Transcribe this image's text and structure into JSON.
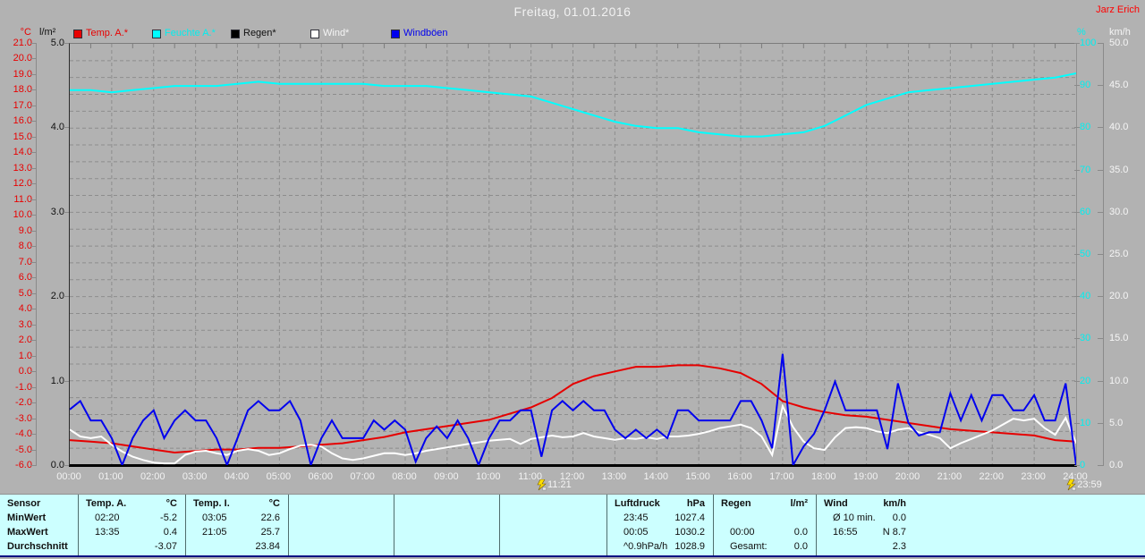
{
  "title": "Freitag, 01.01.2016",
  "watermark": "Jarz Erich",
  "legend": [
    {
      "label": "Temp. A.*",
      "color": "#e80000",
      "text_color": "#e80000"
    },
    {
      "label": "Feuchte A.*",
      "color": "#00ffff",
      "text_color": "#00efef"
    },
    {
      "label": "Regen*",
      "color": "#000000",
      "text_color": "#101010"
    },
    {
      "label": "Wind*",
      "color": "#ffffff",
      "text_color": "#f5f5f5"
    },
    {
      "label": "Windböen",
      "color": "#0000ee",
      "text_color": "#0000ee"
    }
  ],
  "axes": {
    "temp": {
      "unit": "°C",
      "min": -6,
      "max": 21,
      "tick_labels": [
        "21.0",
        "20.0",
        "19.0",
        "18.0",
        "17.0",
        "16.0",
        "15.0",
        "14.0",
        "13.0",
        "12.0",
        "11.0",
        "10.0",
        "9.0",
        "8.0",
        "7.0",
        "6.0",
        "5.0",
        "4.0",
        "3.0",
        "2.0",
        "1.0",
        "0.0",
        "-1.0",
        "-2.0",
        "-3.0",
        "-4.0",
        "-5.0",
        "-6.0"
      ]
    },
    "rain": {
      "unit": "l/m²",
      "min": 0,
      "max": 5,
      "tick_labels": [
        "5.0",
        "4.0",
        "3.0",
        "2.0",
        "1.0",
        "0.0"
      ]
    },
    "humidity": {
      "unit": "%",
      "min": 0,
      "max": 100,
      "tick_labels": [
        "100",
        "90",
        "80",
        "70",
        "60",
        "50",
        "40",
        "30",
        "20",
        "10",
        "0"
      ]
    },
    "wind": {
      "unit": "km/h",
      "min": 0,
      "max": 50,
      "tick_labels": [
        "50.0",
        "45.0",
        "40.0",
        "35.0",
        "30.0",
        "25.0",
        "20.0",
        "15.0",
        "10.0",
        "5.0",
        "0.0"
      ]
    }
  },
  "x_axis": {
    "labels": [
      "00:00",
      "01:00",
      "02:00",
      "03:00",
      "04:00",
      "05:00",
      "06:00",
      "07:00",
      "08:00",
      "09:00",
      "10:00",
      "11:00",
      "12:00",
      "13:00",
      "14:00",
      "15:00",
      "16:00",
      "17:00",
      "18:00",
      "19:00",
      "20:00",
      "21:00",
      "22:00",
      "23:00",
      "24:00"
    ]
  },
  "markers": [
    {
      "label": "11:21",
      "hour": 11.35
    },
    {
      "label": "23:59",
      "hour": 23.983
    }
  ],
  "chart_data": {
    "type": "line",
    "title": "Freitag, 01.01.2016",
    "x_unit": "hours",
    "x_range": [
      0,
      24
    ],
    "grid": {
      "vertical_every_hours": 1,
      "horizontal_every_rain_units": 0.2
    },
    "series": [
      {
        "name": "Regen",
        "unit": "l/m²",
        "axis": "rain",
        "color": "#000000",
        "x_start": 0,
        "x_step": 24,
        "values": [
          0,
          0
        ]
      },
      {
        "name": "Feuchte A.",
        "unit": "%",
        "axis": "humidity",
        "color": "#00ffff",
        "x_start": 0,
        "x_step": 0.5,
        "values": [
          89,
          89,
          88.5,
          89,
          89.5,
          90,
          90,
          90,
          90.5,
          91,
          90.5,
          90.5,
          90.5,
          90.5,
          90.5,
          90,
          90,
          90,
          89.5,
          89,
          88.5,
          88,
          87.5,
          86,
          84.5,
          83,
          81.5,
          80.5,
          80,
          80,
          79,
          78.5,
          78,
          78,
          78.5,
          79,
          80.5,
          83,
          85.5,
          87,
          88.5,
          89,
          89.5,
          90,
          90.5,
          91,
          91.5,
          92,
          93
        ]
      },
      {
        "name": "Temp. A.",
        "unit": "°C",
        "axis": "temp",
        "color": "#e60000",
        "x_start": 0,
        "x_step": 0.5,
        "values": [
          -4.4,
          -4.5,
          -4.6,
          -4.8,
          -5.0,
          -5.2,
          -5.1,
          -5.0,
          -5.0,
          -4.9,
          -4.9,
          -4.8,
          -4.7,
          -4.6,
          -4.4,
          -4.2,
          -3.9,
          -3.7,
          -3.5,
          -3.3,
          -3.1,
          -2.7,
          -2.3,
          -1.7,
          -0.8,
          -0.3,
          0.0,
          0.3,
          0.3,
          0.4,
          0.4,
          0.2,
          -0.1,
          -0.8,
          -1.9,
          -2.3,
          -2.6,
          -2.8,
          -2.9,
          -3.1,
          -3.3,
          -3.5,
          -3.7,
          -3.8,
          -3.9,
          -4.0,
          -4.1,
          -4.4,
          -4.5
        ]
      },
      {
        "name": "Wind",
        "unit": "km/h",
        "axis": "wind",
        "color": "#ffffff",
        "x_start": 0,
        "x_step": 0.25,
        "values": [
          4.2,
          3.4,
          3.2,
          3.4,
          2.4,
          1.6,
          1.0,
          0.6,
          0.3,
          0.2,
          0.2,
          1.2,
          1.6,
          1.7,
          1.4,
          1.2,
          1.7,
          1.9,
          1.7,
          1.2,
          1.4,
          1.9,
          2.3,
          2.4,
          2.2,
          1.4,
          0.8,
          0.6,
          0.8,
          1.1,
          1.4,
          1.4,
          1.2,
          1.4,
          1.7,
          1.9,
          2.1,
          2.3,
          2.5,
          2.7,
          2.9,
          3.0,
          3.1,
          2.5,
          3.1,
          3.3,
          3.5,
          3.3,
          3.4,
          3.8,
          3.4,
          3.2,
          3.0,
          3.2,
          3.1,
          3.3,
          3.1,
          3.4,
          3.4,
          3.5,
          3.7,
          4.0,
          4.4,
          4.6,
          4.8,
          4.4,
          3.4,
          1.2,
          7.0,
          4.5,
          2.8,
          2.0,
          1.8,
          3.3,
          4.4,
          4.5,
          4.4,
          4.0,
          3.8,
          4.2,
          4.4,
          3.9,
          3.6,
          3.2,
          2.0,
          2.6,
          3.1,
          3.6,
          4.1,
          4.8,
          5.5,
          5.3,
          5.5,
          4.4,
          3.6,
          5.6,
          2.6
        ]
      },
      {
        "name": "Windböen",
        "unit": "km/h",
        "axis": "wind",
        "color": "#0000ee",
        "x_start": 0,
        "x_step": 0.25,
        "values": [
          6.6,
          7.6,
          5.3,
          5.3,
          3.2,
          0.0,
          3.2,
          5.3,
          6.5,
          3.2,
          5.3,
          6.5,
          5.3,
          5.3,
          3.2,
          0.0,
          3.2,
          6.5,
          7.6,
          6.5,
          6.5,
          7.6,
          5.3,
          0.0,
          3.2,
          5.3,
          3.2,
          3.2,
          3.2,
          5.3,
          4.2,
          5.3,
          4.2,
          0.4,
          3.2,
          4.6,
          3.2,
          5.3,
          3.2,
          0.0,
          3.2,
          5.3,
          5.3,
          6.5,
          6.5,
          1.0,
          6.5,
          7.6,
          6.5,
          7.6,
          6.5,
          6.5,
          4.2,
          3.2,
          4.2,
          3.2,
          4.2,
          3.2,
          6.5,
          6.5,
          5.3,
          5.3,
          5.3,
          5.3,
          7.6,
          7.6,
          5.3,
          2.0,
          13.2,
          0.0,
          2.2,
          3.7,
          6.5,
          9.9,
          6.5,
          6.5,
          6.5,
          6.5,
          1.9,
          9.7,
          5.0,
          3.5,
          3.9,
          3.9,
          8.5,
          5.3,
          8.3,
          5.3,
          8.3,
          8.3,
          6.5,
          6.5,
          8.3,
          5.3,
          5.3,
          9.7,
          0.0
        ]
      }
    ]
  },
  "table": {
    "row_labels": [
      "Sensor",
      "MinWert",
      "MaxWert",
      "Durchschnitt"
    ],
    "columns": [
      {
        "name": "Temp. A.",
        "unit": "°C",
        "rows": [
          [
            "02:20",
            "-5.2"
          ],
          [
            "13:35",
            "0.4"
          ],
          [
            "",
            "-3.07"
          ]
        ]
      },
      {
        "name": "Temp. I.",
        "unit": "°C",
        "rows": [
          [
            "03:05",
            "22.6"
          ],
          [
            "21:05",
            "25.7"
          ],
          [
            "",
            "23.84"
          ]
        ]
      },
      {
        "name": "",
        "unit": "",
        "rows": [
          [
            "",
            ""
          ],
          [
            "",
            ""
          ],
          [
            "",
            ""
          ]
        ]
      },
      {
        "name": "",
        "unit": "",
        "rows": [
          [
            "",
            ""
          ],
          [
            "",
            ""
          ],
          [
            "",
            ""
          ]
        ]
      },
      {
        "name": "",
        "unit": "",
        "rows": [
          [
            "",
            ""
          ],
          [
            "",
            ""
          ],
          [
            "",
            ""
          ]
        ]
      },
      {
        "name": "Luftdruck",
        "unit": "hPa",
        "rows": [
          [
            "23:45",
            "1027.4"
          ],
          [
            "00:05",
            "1030.2"
          ],
          [
            "^0.9hPa/h",
            "1028.9"
          ]
        ]
      },
      {
        "name": "Regen",
        "unit": "l/m²",
        "rows": [
          [
            "",
            ""
          ],
          [
            "00:00",
            "0.0"
          ],
          [
            "Gesamt:",
            "0.0"
          ]
        ]
      },
      {
        "name": "Wind",
        "unit": "km/h",
        "rows": [
          [
            "Ø 10 min.",
            "0.0"
          ],
          [
            "16:55",
            "N 8.7"
          ],
          [
            "",
            "2.3"
          ]
        ]
      }
    ]
  }
}
